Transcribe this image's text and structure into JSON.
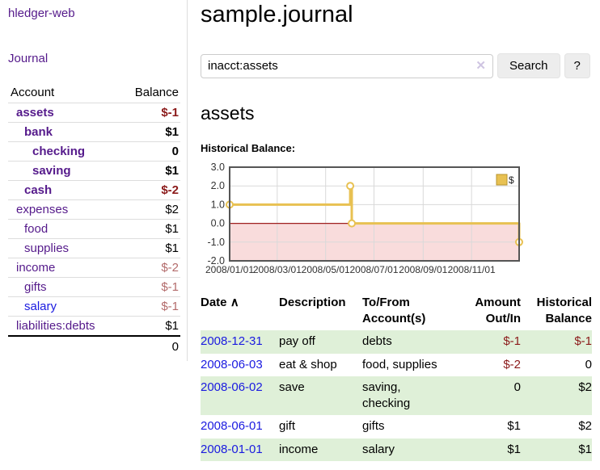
{
  "app": {
    "brand": "hledger-web"
  },
  "sidebar": {
    "journal_link": "Journal",
    "accounts_table": {
      "headers": {
        "account": "Account",
        "balance": "Balance"
      },
      "rows": [
        {
          "account": "assets",
          "balance": "$-1",
          "indent": 1,
          "bold": true,
          "balance_tone": "negative-strong",
          "link_color": "purple"
        },
        {
          "account": "bank",
          "balance": "$1",
          "indent": 2,
          "bold": true,
          "balance_tone": "normal",
          "link_color": "purple"
        },
        {
          "account": "checking",
          "balance": "0",
          "indent": 3,
          "bold": true,
          "balance_tone": "normal",
          "link_color": "purple"
        },
        {
          "account": "saving",
          "balance": "$1",
          "indent": 3,
          "bold": true,
          "balance_tone": "normal",
          "link_color": "purple"
        },
        {
          "account": "cash",
          "balance": "$-2",
          "indent": 2,
          "bold": true,
          "balance_tone": "negative-strong",
          "link_color": "purple"
        },
        {
          "account": "expenses",
          "balance": "$2",
          "indent": 1,
          "bold": false,
          "balance_tone": "normal",
          "link_color": "purple"
        },
        {
          "account": "food",
          "balance": "$1",
          "indent": 2,
          "bold": false,
          "balance_tone": "normal",
          "link_color": "purple"
        },
        {
          "account": "supplies",
          "balance": "$1",
          "indent": 2,
          "bold": false,
          "balance_tone": "normal",
          "link_color": "purple"
        },
        {
          "account": "income",
          "balance": "$-2",
          "indent": 1,
          "bold": false,
          "balance_tone": "negative-soft",
          "link_color": "purple"
        },
        {
          "account": "gifts",
          "balance": "$-1",
          "indent": 2,
          "bold": false,
          "balance_tone": "negative-soft",
          "link_color": "purple"
        },
        {
          "account": "salary",
          "balance": "$-1",
          "indent": 2,
          "bold": false,
          "balance_tone": "negative-soft",
          "link_color": "blue"
        },
        {
          "account": "liabilities:debts",
          "balance": "$1",
          "indent": 1,
          "bold": false,
          "balance_tone": "normal",
          "link_color": "purple"
        }
      ],
      "total": "0"
    }
  },
  "main": {
    "title": "sample.journal",
    "search": {
      "value": "inacct:assets",
      "clear_icon": "✕",
      "search_button": "Search",
      "help_button": "?"
    },
    "account_heading": "assets",
    "chart_heading": "Historical Balance:"
  },
  "chart_data": {
    "type": "line",
    "step": "after",
    "legend": {
      "label": "$",
      "position": "top-right"
    },
    "series": [
      {
        "name": "$",
        "points": [
          [
            "2008-01-01",
            1
          ],
          [
            "2008-06-01",
            2
          ],
          [
            "2008-06-03",
            0
          ],
          [
            "2008-12-31",
            -1
          ]
        ]
      }
    ],
    "x_ticks": [
      {
        "date": "2008-01-01",
        "label": "2008/01/01"
      },
      {
        "date": "2008-03-01",
        "label": "2008/03/01"
      },
      {
        "date": "2008-05-01",
        "label": "2008/05/01"
      },
      {
        "date": "2008-07-01",
        "label": "2008/07/01"
      },
      {
        "date": "2008-09-01",
        "label": "2008/09/01"
      },
      {
        "date": "2008-11-01",
        "label": "2008/11/01"
      }
    ],
    "y_ticks": [
      {
        "value": 3,
        "label": "3.0"
      },
      {
        "value": 2,
        "label": "2.0"
      },
      {
        "value": 1,
        "label": "1.0"
      },
      {
        "value": 0,
        "label": "0.0"
      },
      {
        "value": -1,
        "label": "-1.0"
      },
      {
        "value": -2,
        "label": "-2.0"
      }
    ],
    "ylim": [
      -2,
      3
    ],
    "xlim": [
      "2008-01-01",
      "2008-12-31"
    ],
    "grid": true,
    "colors": {
      "line": "#e8c152",
      "legend_border": "#b8952e",
      "marker_fill": "#ffffff",
      "negative_region": "#f9dcdc",
      "zero_line": "#9e1f1f",
      "grid": "#d9d9d9",
      "border": "#555555",
      "tick_text": "#333333"
    }
  },
  "register": {
    "headers": {
      "date": "Date",
      "sort_indicator": "∧",
      "description": "Description",
      "accounts": "To/From Account(s)",
      "amount": "Amount Out/In",
      "balance": "Historical Balance"
    },
    "rows": [
      {
        "date": "2008-12-31",
        "description": "pay off",
        "accounts": "debts",
        "amount": "$-1",
        "amount_negative": true,
        "balance": "$-1",
        "balance_negative": true
      },
      {
        "date": "2008-06-03",
        "description": "eat & shop",
        "accounts": "food, supplies",
        "amount": "$-2",
        "amount_negative": true,
        "balance": "0",
        "balance_negative": false
      },
      {
        "date": "2008-06-02",
        "description": "save",
        "accounts": "saving, checking",
        "amount": "0",
        "amount_negative": false,
        "balance": "$2",
        "balance_negative": false
      },
      {
        "date": "2008-06-01",
        "description": "gift",
        "accounts": "gifts",
        "amount": "$1",
        "amount_negative": false,
        "balance": "$2",
        "balance_negative": false
      },
      {
        "date": "2008-01-01",
        "description": "income",
        "accounts": "salary",
        "amount": "$1",
        "amount_negative": false,
        "balance": "$1",
        "balance_negative": false
      }
    ]
  },
  "colors": {
    "visited_link_purple": "#551a8b",
    "link_blue": "#1a1ae0",
    "negative_strong": "#8b1a1a",
    "negative_soft": "#b36b6b",
    "row_green": "#dff0d8"
  }
}
